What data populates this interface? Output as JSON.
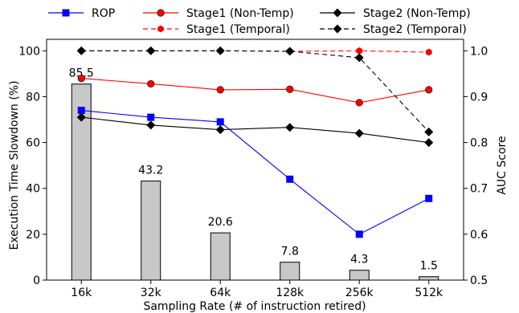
{
  "chart_data": {
    "type": "bar+line",
    "categories": [
      "16k",
      "32k",
      "64k",
      "128k",
      "256k",
      "512k"
    ],
    "xlabel": "Sampling Rate (# of instruction retired)",
    "ylabel_left": "Execution Time Slowdown (%)",
    "ylabel_right": "AUC Score",
    "ylim_left": [
      0,
      105
    ],
    "ylim_right": [
      0.5,
      1.025
    ],
    "yticks_left": [
      0,
      20,
      40,
      60,
      80,
      100
    ],
    "yticks_right": [
      0.5,
      0.6,
      0.7,
      0.8,
      0.9,
      1.0
    ],
    "yticks_right_labels": [
      "0.5",
      "0.6",
      "0.7",
      "0.8",
      "0.9",
      "1.0"
    ],
    "grid": false,
    "legend_position": "top",
    "bars": {
      "axis": "left",
      "color": "#c8c8c8",
      "values": [
        85.5,
        43.2,
        20.6,
        7.8,
        4.3,
        1.5
      ],
      "labels": [
        "85.5",
        "43.2",
        "20.6",
        "7.8",
        "4.3",
        "1.5"
      ]
    },
    "series": [
      {
        "name": "ROP",
        "axis": "right",
        "color": "#0000ff",
        "marker": "square",
        "dash": false,
        "values": [
          0.87,
          0.855,
          0.845,
          0.72,
          0.6,
          0.678
        ]
      },
      {
        "name": "Stage1 (Non-Temp)",
        "axis": "right",
        "color": "#ff0000",
        "marker": "circle",
        "dash": false,
        "values": [
          0.94,
          0.928,
          0.915,
          0.916,
          0.887,
          0.915
        ]
      },
      {
        "name": "Stage2 (Non-Temp)",
        "axis": "right",
        "color": "#000000",
        "marker": "diamond",
        "dash": false,
        "values": [
          0.855,
          0.838,
          0.828,
          0.833,
          0.82,
          0.8
        ]
      },
      {
        "name": "Stage1 (Temporal)",
        "axis": "right",
        "color": "#ff0000",
        "marker": "hexagon",
        "dash": true,
        "values": [
          1.0,
          1.0,
          1.0,
          0.999,
          1.0,
          0.997
        ]
      },
      {
        "name": "Stage2 (Temporal)",
        "axis": "right",
        "color": "#000000",
        "marker": "diamond",
        "dash": true,
        "values": [
          1.0,
          1.0,
          1.0,
          0.999,
          0.985,
          0.823
        ]
      }
    ]
  }
}
